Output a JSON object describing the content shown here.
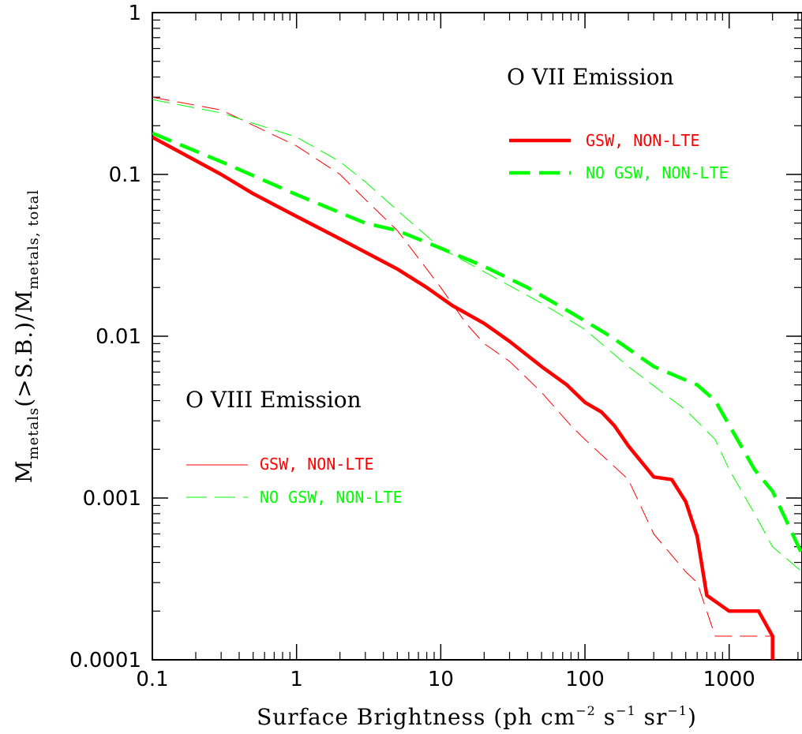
{
  "chart_data": {
    "type": "line",
    "xscale": "log",
    "yscale": "log",
    "xlim": [
      0.1,
      3200
    ],
    "ylim": [
      0.0001,
      1
    ],
    "xlabel_main": "Surface Brightness (ph cm",
    "xlabel_exp1": "−2",
    "xlabel_mid1": " s",
    "xlabel_exp2": "−1",
    "xlabel_mid2": " sr",
    "xlabel_exp3": "−1",
    "xlabel_end": ")",
    "ylabel_M1": "M",
    "ylabel_sub1": "metals",
    "ylabel_mid": "(>S.B.)/M",
    "ylabel_sub2": "metals, total",
    "x_ticks": [
      {
        "value": 0.1,
        "label": "0.1"
      },
      {
        "value": 1,
        "label": "1"
      },
      {
        "value": 10,
        "label": "10"
      },
      {
        "value": 100,
        "label": "100"
      },
      {
        "value": 1000,
        "label": "1000"
      }
    ],
    "y_ticks": [
      {
        "value": 1,
        "label": "1"
      },
      {
        "value": 0.1,
        "label": "0.1"
      },
      {
        "value": 0.01,
        "label": "0.01"
      },
      {
        "value": 0.001,
        "label": "0.001"
      },
      {
        "value": 0.0001,
        "label": "0.0001"
      }
    ],
    "annotations": {
      "ovii_title": "O VII Emission",
      "oviii_title": "O VIII Emission"
    },
    "colors": {
      "red": "#ff0000",
      "green": "#00ff00"
    },
    "series": [
      {
        "id": "ovii_gsw",
        "name": "GSW, NON-LTE",
        "group": "O VII",
        "color": "red",
        "style": "solid",
        "weight": "thick",
        "x": [
          0.1,
          0.3,
          0.5,
          1,
          2,
          5,
          8,
          12,
          20,
          30,
          50,
          75,
          100,
          130,
          160,
          200,
          300,
          400,
          500,
          600,
          700,
          1000,
          1600,
          2000,
          2000
        ],
        "y": [
          0.17,
          0.1,
          0.076,
          0.055,
          0.04,
          0.026,
          0.02,
          0.0155,
          0.012,
          0.0093,
          0.0065,
          0.005,
          0.0039,
          0.0034,
          0.0028,
          0.0021,
          0.00135,
          0.0013,
          0.00095,
          0.00058,
          0.00025,
          0.0002,
          0.0002,
          0.00014,
          0.0001
        ]
      },
      {
        "id": "ovii_nogsw",
        "name": "NO GSW, NON-LTE",
        "group": "O VII",
        "color": "green",
        "style": "dashed",
        "weight": "thick",
        "x": [
          0.1,
          0.3,
          1,
          3,
          5,
          10,
          20,
          40,
          80,
          150,
          300,
          600,
          800,
          1500,
          2000,
          3200
        ],
        "y": [
          0.18,
          0.12,
          0.075,
          0.05,
          0.045,
          0.035,
          0.027,
          0.02,
          0.014,
          0.01,
          0.0065,
          0.005,
          0.004,
          0.0015,
          0.0011,
          0.00045
        ]
      },
      {
        "id": "oviii_gsw",
        "name": "GSW, NON-LTE",
        "group": "O VIII",
        "color": "red",
        "style": "dashed",
        "weight": "thin",
        "x": [
          0.1,
          0.3,
          1,
          2,
          3,
          5,
          10,
          15,
          20,
          30,
          50,
          80,
          100,
          200,
          300,
          500,
          600,
          800,
          1000,
          2000
        ],
        "y": [
          0.3,
          0.25,
          0.15,
          0.1,
          0.07,
          0.045,
          0.02,
          0.012,
          0.009,
          0.007,
          0.0045,
          0.0028,
          0.0023,
          0.0013,
          0.0006,
          0.00035,
          0.0003,
          0.00014,
          0.00014,
          0.00014
        ]
      },
      {
        "id": "oviii_nogsw",
        "name": "NO GSW, NON-LTE",
        "group": "O VIII",
        "color": "green",
        "style": "dashed",
        "weight": "thin",
        "x": [
          0.1,
          0.3,
          1,
          2,
          3,
          5,
          10,
          20,
          50,
          100,
          200,
          500,
          800,
          1000,
          1500,
          2000,
          3200
        ],
        "y": [
          0.29,
          0.24,
          0.17,
          0.12,
          0.09,
          0.06,
          0.035,
          0.025,
          0.016,
          0.011,
          0.0065,
          0.0035,
          0.0023,
          0.0015,
          0.0008,
          0.0005,
          0.00035
        ]
      }
    ],
    "legend": {
      "ovii": [
        {
          "series": "ovii_gsw",
          "label": "GSW, NON-LTE"
        },
        {
          "series": "ovii_nogsw",
          "label": "NO GSW, NON-LTE"
        }
      ],
      "oviii": [
        {
          "series": "oviii_gsw",
          "label": "GSW, NON-LTE"
        },
        {
          "series": "oviii_nogsw",
          "label": "NO GSW, NON-LTE"
        }
      ]
    },
    "grid": false,
    "legend_placement": "right (O VII), lower-left (O VIII)"
  }
}
